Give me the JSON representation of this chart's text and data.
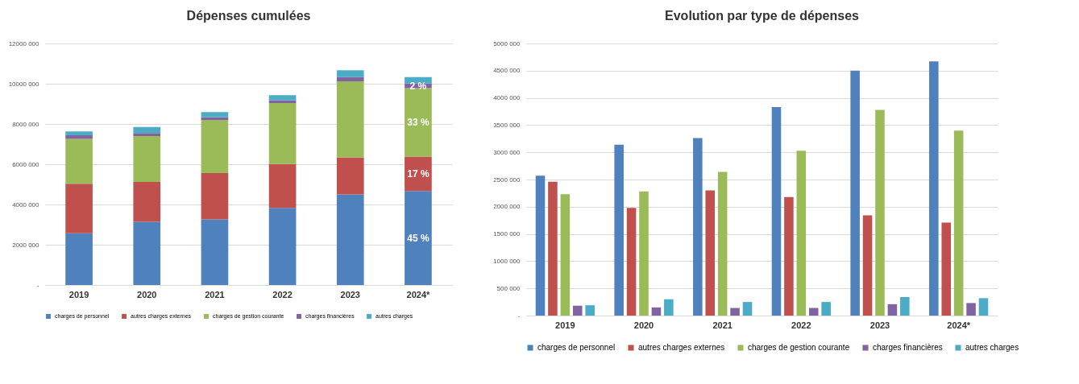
{
  "chart_data": [
    {
      "type": "bar",
      "title": "Dépenses cumulées",
      "stacked": true,
      "categories": [
        "2019",
        "2020",
        "2021",
        "2022",
        "2023",
        "2024*"
      ],
      "series": [
        {
          "name": "charges de personnel",
          "color": "#4f81bd",
          "values": [
            2570000,
            3140000,
            3260000,
            3830000,
            4500000,
            4670000
          ]
        },
        {
          "name": "autres charges externes",
          "color": "#c0504d",
          "values": [
            2460000,
            1980000,
            2300000,
            2180000,
            1840000,
            1710000
          ]
        },
        {
          "name": "charges de gestion courante",
          "color": "#9bbb59",
          "values": [
            2230000,
            2280000,
            2640000,
            3030000,
            3780000,
            3400000
          ]
        },
        {
          "name": "charges financières",
          "color": "#8064a2",
          "values": [
            180000,
            150000,
            140000,
            140000,
            210000,
            230000
          ]
        },
        {
          "name": "autres charges",
          "color": "#4bacc6",
          "values": [
            190000,
            300000,
            250000,
            250000,
            340000,
            320000
          ]
        }
      ],
      "ylim": [
        0,
        12000000
      ],
      "yticks": [
        {
          "value": 0,
          "label": "-"
        },
        {
          "value": 2000000,
          "label": "2000 000"
        },
        {
          "value": 4000000,
          "label": "4000 000"
        },
        {
          "value": 6000000,
          "label": "6000 000"
        },
        {
          "value": 8000000,
          "label": "8000 000"
        },
        {
          "value": 10000000,
          "label": "10000 000"
        },
        {
          "value": 12000000,
          "label": "12000 000"
        }
      ],
      "annotations": [
        "45 %",
        "17 %",
        "33 %",
        "2 %"
      ],
      "grid": "y",
      "legend": "bottom"
    },
    {
      "type": "bar",
      "title": "Evolution par type de dépenses",
      "categories": [
        "2019",
        "2020",
        "2021",
        "2022",
        "2023",
        "2024*"
      ],
      "series": [
        {
          "name": "charges de personnel",
          "color": "#4f81bd",
          "values": [
            2570000,
            3140000,
            3260000,
            3830000,
            4500000,
            4670000
          ]
        },
        {
          "name": "autres charges externes",
          "color": "#c0504d",
          "values": [
            2460000,
            1980000,
            2300000,
            2180000,
            1840000,
            1710000
          ]
        },
        {
          "name": "charges de gestion courante",
          "color": "#9bbb59",
          "values": [
            2230000,
            2280000,
            2640000,
            3030000,
            3780000,
            3400000
          ]
        },
        {
          "name": "charges financières",
          "color": "#8064a2",
          "values": [
            180000,
            150000,
            140000,
            140000,
            210000,
            230000
          ]
        },
        {
          "name": "autres charges",
          "color": "#4bacc6",
          "values": [
            190000,
            300000,
            250000,
            250000,
            340000,
            320000
          ]
        }
      ],
      "ylim": [
        0,
        5000000
      ],
      "yticks": [
        {
          "value": 0,
          "label": "-"
        },
        {
          "value": 500000,
          "label": "500 000"
        },
        {
          "value": 1000000,
          "label": "1000 000"
        },
        {
          "value": 1500000,
          "label": "1500 000"
        },
        {
          "value": 2000000,
          "label": "2000 000"
        },
        {
          "value": 2500000,
          "label": "2500 000"
        },
        {
          "value": 3000000,
          "label": "3000 000"
        },
        {
          "value": 3500000,
          "label": "3500 000"
        },
        {
          "value": 4000000,
          "label": "4000 000"
        },
        {
          "value": 4500000,
          "label": "4500 000"
        },
        {
          "value": 5000000,
          "label": "5000 000"
        }
      ],
      "grid": "y",
      "legend": "bottom"
    }
  ]
}
